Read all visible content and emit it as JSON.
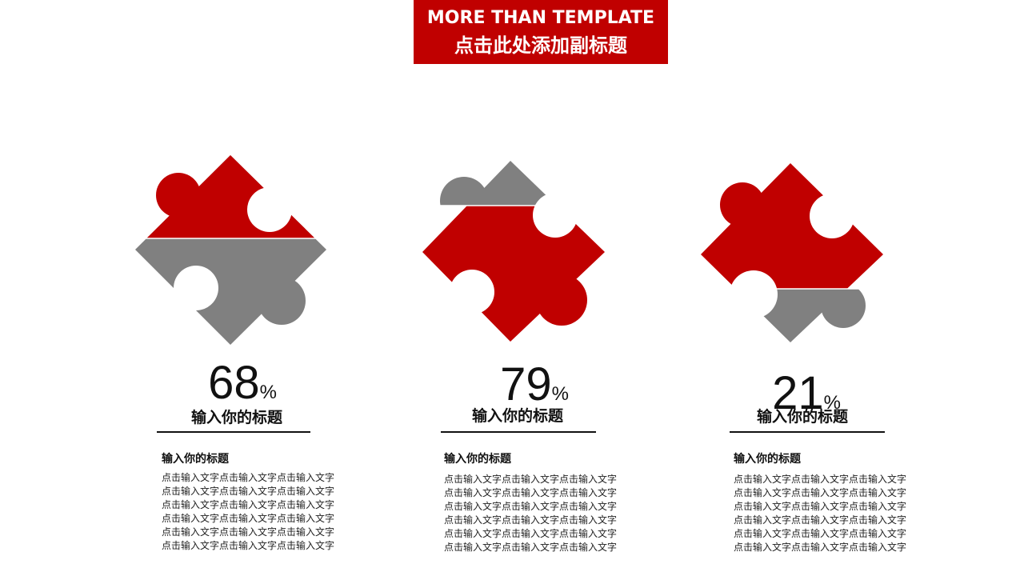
{
  "header": {
    "title_en": "MORE THAN TEMPLATE",
    "subtitle_cn": "点击此处添加副标题"
  },
  "colors": {
    "accent": "#c00000",
    "neutral": "#808080",
    "text": "#111111"
  },
  "items": [
    {
      "percent_value": "68",
      "percent_symbol": "%",
      "title": "输入你的标题",
      "section_title": "输入你的标题",
      "lines": [
        "点击输入文字点击输入文字点击输入文字",
        "点击输入文字点击输入文字点击输入文字",
        "点击输入文字点击输入文字点击输入文字",
        "点击输入文字点击输入文字点击输入文字",
        "点击输入文字点击输入文字点击输入文字",
        "点击输入文字点击输入文字点击输入文字"
      ]
    },
    {
      "percent_value": "79",
      "percent_symbol": "%",
      "title": "输入你的标题",
      "section_title": "输入你的标题",
      "lines": [
        "点击输入文字点击输入文字点击输入文字",
        "点击输入文字点击输入文字点击输入文字",
        "点击输入文字点击输入文字点击输入文字",
        "点击输入文字点击输入文字点击输入文字",
        "点击输入文字点击输入文字点击输入文字",
        "点击输入文字点击输入文字点击输入文字"
      ]
    },
    {
      "percent_value": "21",
      "percent_symbol": "%",
      "title": "输入你的标题",
      "section_title": "输入你的标题",
      "lines": [
        "点击输入文字点击输入文字点击输入文字",
        "点击输入文字点击输入文字点击输入文字",
        "点击输入文字点击输入文字点击输入文字",
        "点击输入文字点击输入文字点击输入文字",
        "点击输入文字点击输入文字点击输入文字",
        "点击输入文字点击输入文字点击输入文字"
      ]
    }
  ]
}
